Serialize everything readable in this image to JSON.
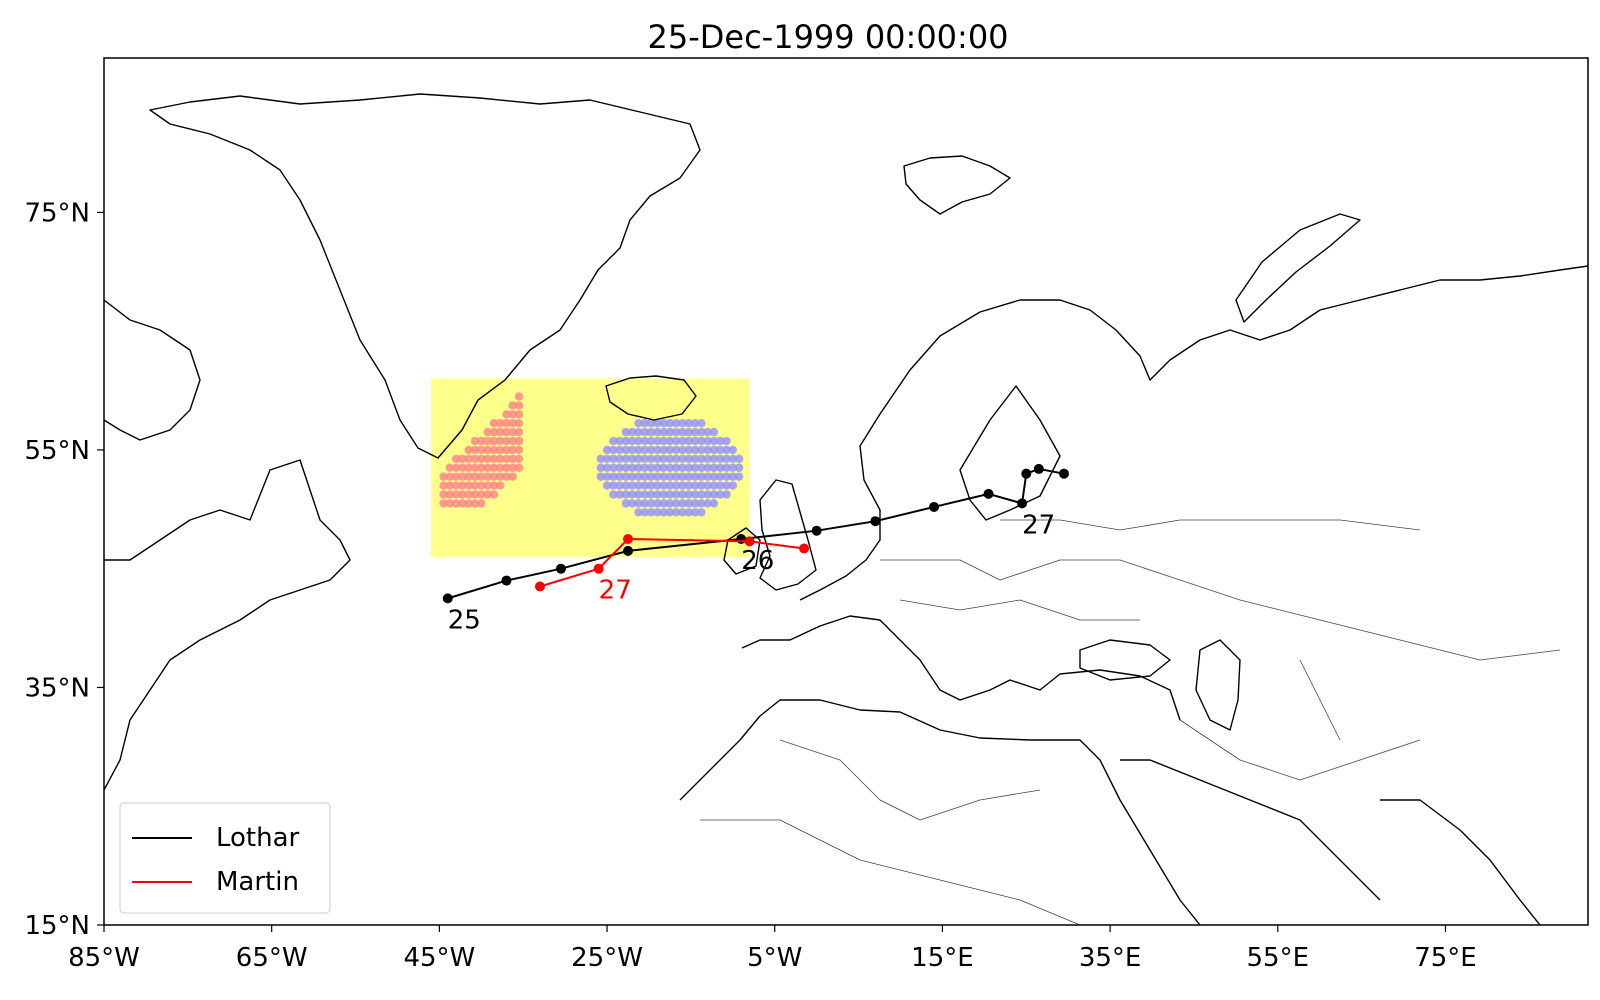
{
  "title": "25-Dec-1999 00:00:00",
  "map": {
    "projection": "PlateCarree",
    "lon_range": [
      -85,
      92
    ],
    "lat_range": [
      15,
      88
    ],
    "lon_ticks": [
      {
        "value": -85,
        "label": "85°W"
      },
      {
        "value": -65,
        "label": "65°W"
      },
      {
        "value": -45,
        "label": "45°W"
      },
      {
        "value": -25,
        "label": "25°W"
      },
      {
        "value": -5,
        "label": "5°W"
      },
      {
        "value": 15,
        "label": "15°E"
      },
      {
        "value": 35,
        "label": "35°E"
      },
      {
        "value": 55,
        "label": "55°E"
      },
      {
        "value": 75,
        "label": "75°E"
      }
    ],
    "lat_ticks": [
      {
        "value": 15,
        "label": "15°N"
      },
      {
        "value": 35,
        "label": "35°N"
      },
      {
        "value": 55,
        "label": "55°N"
      },
      {
        "value": 75,
        "label": "75°N"
      }
    ]
  },
  "region_box": {
    "lon": [
      -46,
      -8
    ],
    "lat": [
      46,
      61
    ],
    "color": "#ffff66"
  },
  "clusters": [
    {
      "name": "red-cluster",
      "color": "#ff7f8a",
      "center_lon": -39,
      "center_lat": 55.5
    },
    {
      "name": "blue-cluster",
      "color": "#8f8fff",
      "center_lon": -17,
      "center_lat": 53
    }
  ],
  "tracks": [
    {
      "name": "Lothar",
      "color": "#000000",
      "points": [
        [
          -44,
          42.5
        ],
        [
          -37,
          44
        ],
        [
          -30.5,
          45
        ],
        [
          -22.5,
          46.5
        ],
        [
          -9,
          47.5
        ],
        [
          0,
          48.2
        ],
        [
          7,
          49
        ],
        [
          14,
          50.2
        ],
        [
          20.5,
          51.3
        ],
        [
          24.5,
          50.5
        ],
        [
          25,
          53
        ],
        [
          26.5,
          53.4
        ],
        [
          29.5,
          53
        ]
      ],
      "labels": [
        {
          "text": "25",
          "lon": -44,
          "lat": 42.5
        },
        {
          "text": "26",
          "lon": -9,
          "lat": 47.5
        },
        {
          "text": "27",
          "lon": 24.5,
          "lat": 50.5
        }
      ]
    },
    {
      "name": "Martin",
      "color": "#ff0000",
      "points": [
        [
          -33,
          43.5
        ],
        [
          -26,
          45
        ],
        [
          -22.5,
          47.5
        ],
        [
          -8,
          47.3
        ],
        [
          -1.5,
          46.7
        ]
      ],
      "labels": [
        {
          "text": "27",
          "lon": -26,
          "lat": 45
        }
      ]
    }
  ],
  "legend": {
    "position": "lower-left",
    "entries": [
      "Lothar",
      "Martin"
    ]
  }
}
